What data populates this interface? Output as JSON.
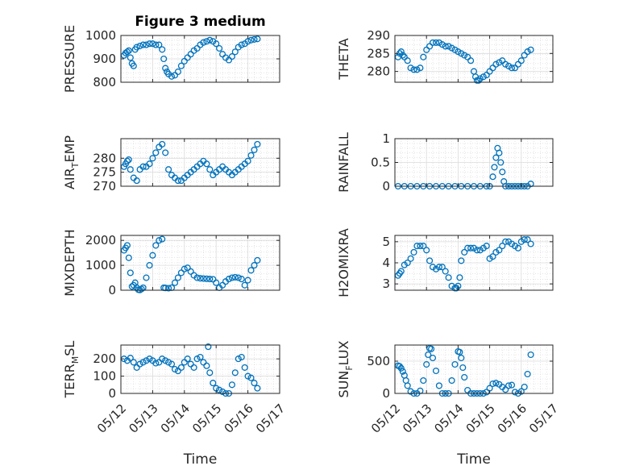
{
  "figure": {
    "title": "Figure 3 medium"
  },
  "colors": {
    "marker": "#0072BD",
    "grid": "#d4d4d4",
    "axis": "#262626"
  },
  "x_ticks": [
    "05/12",
    "05/13",
    "05/14",
    "05/15",
    "05/16",
    "05/17"
  ],
  "chart_data": [
    {
      "type": "scatter",
      "title": "Figure 3 medium",
      "ylabel": "PRESSURE",
      "xlabel": "",
      "ylim": [
        800,
        1000
      ],
      "yticks": [
        800,
        900,
        1000
      ],
      "xlim": [
        0,
        5
      ],
      "grid": true,
      "x": [
        0.1,
        0.15,
        0.2,
        0.25,
        0.3,
        0.35,
        0.4,
        0.45,
        0.5,
        0.6,
        0.7,
        0.8,
        0.9,
        1.0,
        1.1,
        1.2,
        1.3,
        1.35,
        1.4,
        1.45,
        1.5,
        1.6,
        1.7,
        1.8,
        1.9,
        2.0,
        2.1,
        2.2,
        2.3,
        2.4,
        2.5,
        2.6,
        2.7,
        2.8,
        2.9,
        3.0,
        3.1,
        3.2,
        3.3,
        3.4,
        3.5,
        3.6,
        3.7,
        3.8,
        3.9,
        4.0,
        4.1,
        4.2,
        4.3
      ],
      "y": [
        915,
        925,
        930,
        935,
        905,
        880,
        870,
        940,
        950,
        955,
        960,
        960,
        965,
        965,
        960,
        960,
        940,
        900,
        860,
        845,
        835,
        825,
        830,
        845,
        870,
        890,
        905,
        920,
        935,
        945,
        960,
        970,
        975,
        980,
        975,
        965,
        945,
        920,
        905,
        895,
        910,
        930,
        950,
        960,
        965,
        975,
        980,
        983,
        985
      ]
    },
    {
      "type": "scatter",
      "title": "",
      "ylabel": "THETA",
      "xlabel": "",
      "ylim": [
        277,
        290
      ],
      "yticks": [
        280,
        285,
        290
      ],
      "xlim": [
        0,
        5
      ],
      "grid": true,
      "x": [
        0.1,
        0.15,
        0.2,
        0.25,
        0.3,
        0.4,
        0.5,
        0.6,
        0.7,
        0.8,
        0.9,
        1.0,
        1.1,
        1.2,
        1.3,
        1.4,
        1.5,
        1.6,
        1.7,
        1.8,
        1.9,
        2.0,
        2.1,
        2.2,
        2.3,
        2.4,
        2.5,
        2.55,
        2.6,
        2.65,
        2.7,
        2.8,
        2.9,
        3.0,
        3.1,
        3.2,
        3.3,
        3.4,
        3.5,
        3.6,
        3.7,
        3.8,
        3.9,
        4.0,
        4.1,
        4.2,
        4.3
      ],
      "y": [
        284,
        285,
        285.5,
        284.5,
        284,
        283,
        281,
        280.5,
        280.5,
        281,
        284,
        286,
        287,
        288,
        288,
        288,
        287.5,
        287,
        287,
        286.5,
        286,
        285.5,
        285,
        284.5,
        284,
        283,
        280,
        278.5,
        277.5,
        277.5,
        278,
        278.5,
        279,
        280,
        281,
        282,
        282.5,
        283,
        282,
        281.5,
        281,
        281,
        282,
        283,
        284.5,
        285.5,
        286
      ]
    },
    {
      "type": "scatter",
      "title": "",
      "ylabel": "AIR_TEMP",
      "xlabel": "",
      "ylim": [
        270,
        287
      ],
      "yticks": [
        270,
        275,
        280
      ],
      "xlim": [
        0,
        5
      ],
      "grid": true,
      "x": [
        0.1,
        0.15,
        0.2,
        0.25,
        0.3,
        0.4,
        0.5,
        0.6,
        0.7,
        0.8,
        0.9,
        1.0,
        1.1,
        1.2,
        1.3,
        1.4,
        1.5,
        1.6,
        1.7,
        1.8,
        1.9,
        2.0,
        2.1,
        2.2,
        2.3,
        2.4,
        2.5,
        2.6,
        2.7,
        2.8,
        2.9,
        3.0,
        3.1,
        3.2,
        3.3,
        3.4,
        3.5,
        3.6,
        3.7,
        3.8,
        3.9,
        4.0,
        4.1,
        4.2,
        4.3
      ],
      "y": [
        277,
        278,
        279,
        279.5,
        276,
        273,
        272,
        276,
        277,
        277,
        278,
        280,
        282,
        284,
        285,
        282,
        276,
        274,
        273,
        272,
        272,
        273,
        274,
        275,
        276,
        277,
        278,
        279,
        278,
        276,
        274,
        275,
        276,
        277,
        276,
        275,
        274,
        275,
        276,
        277,
        278,
        279,
        281,
        283,
        285
      ]
    },
    {
      "type": "scatter",
      "title": "",
      "ylabel": "RAINFALL",
      "xlabel": "",
      "ylim": [
        0,
        1
      ],
      "yticks": [
        0,
        0.5,
        1
      ],
      "xlim": [
        0,
        5
      ],
      "grid": true,
      "x": [
        0.1,
        0.3,
        0.5,
        0.7,
        0.9,
        1.1,
        1.3,
        1.5,
        1.7,
        1.9,
        2.1,
        2.3,
        2.5,
        2.7,
        2.9,
        3.0,
        3.1,
        3.15,
        3.2,
        3.25,
        3.3,
        3.35,
        3.4,
        3.45,
        3.5,
        3.6,
        3.7,
        3.8,
        3.9,
        4.0,
        4.1,
        4.2,
        4.3
      ],
      "y": [
        0,
        0,
        0,
        0,
        0,
        0,
        0,
        0,
        0,
        0,
        0,
        0,
        0,
        0,
        0,
        0,
        0.2,
        0.4,
        0.6,
        0.8,
        0.7,
        0.5,
        0.3,
        0.1,
        0,
        0,
        0,
        0,
        0,
        0,
        0,
        0,
        0.05
      ]
    },
    {
      "type": "scatter",
      "title": "",
      "ylabel": "MIXDEPTH",
      "xlabel": "",
      "ylim": [
        0,
        2200
      ],
      "yticks": [
        0,
        1000,
        2000
      ],
      "xlim": [
        0,
        5
      ],
      "grid": true,
      "x": [
        0.1,
        0.15,
        0.2,
        0.25,
        0.3,
        0.35,
        0.4,
        0.45,
        0.5,
        0.55,
        0.6,
        0.65,
        0.7,
        0.8,
        0.9,
        1.0,
        1.1,
        1.2,
        1.3,
        1.35,
        1.4,
        1.5,
        1.6,
        1.7,
        1.8,
        1.9,
        2.0,
        2.1,
        2.2,
        2.3,
        2.4,
        2.5,
        2.6,
        2.7,
        2.8,
        2.9,
        3.0,
        3.1,
        3.2,
        3.3,
        3.4,
        3.5,
        3.6,
        3.7,
        3.8,
        3.9,
        4.0,
        4.1,
        4.2,
        4.3
      ],
      "y": [
        1600,
        1700,
        1800,
        1300,
        700,
        150,
        200,
        300,
        100,
        20,
        10,
        50,
        100,
        500,
        1000,
        1400,
        1800,
        2000,
        2050,
        100,
        90,
        80,
        100,
        300,
        500,
        700,
        850,
        900,
        750,
        600,
        500,
        480,
        470,
        460,
        450,
        440,
        300,
        100,
        200,
        350,
        450,
        500,
        520,
        500,
        450,
        200,
        400,
        800,
        1000,
        1200
      ]
    },
    {
      "type": "scatter",
      "title": "",
      "ylabel": "H2OMIXRA",
      "xlabel": "",
      "ylim": [
        2.7,
        5.3
      ],
      "yticks": [
        3,
        4,
        5
      ],
      "xlim": [
        0,
        5
      ],
      "grid": true,
      "x": [
        0.1,
        0.15,
        0.2,
        0.3,
        0.4,
        0.5,
        0.6,
        0.7,
        0.8,
        0.9,
        1.0,
        1.1,
        1.2,
        1.3,
        1.4,
        1.5,
        1.6,
        1.7,
        1.8,
        1.9,
        1.95,
        2.0,
        2.05,
        2.1,
        2.2,
        2.3,
        2.4,
        2.5,
        2.6,
        2.7,
        2.8,
        2.9,
        3.0,
        3.1,
        3.2,
        3.3,
        3.4,
        3.5,
        3.6,
        3.7,
        3.8,
        3.9,
        4.0,
        4.1,
        4.2,
        4.3
      ],
      "y": [
        3.4,
        3.5,
        3.6,
        3.9,
        4.0,
        4.2,
        4.5,
        4.8,
        4.8,
        4.8,
        4.6,
        4.1,
        3.8,
        3.7,
        3.8,
        3.8,
        3.6,
        3.3,
        2.9,
        2.8,
        2.8,
        2.9,
        3.3,
        4.1,
        4.5,
        4.7,
        4.7,
        4.7,
        4.6,
        4.6,
        4.7,
        4.8,
        4.2,
        4.3,
        4.5,
        4.6,
        4.8,
        5.0,
        5.0,
        4.9,
        4.8,
        4.7,
        5.0,
        5.1,
        5.1,
        4.9
      ]
    },
    {
      "type": "scatter",
      "title": "",
      "ylabel": "TERR_MSL",
      "xlabel": "Time",
      "ylim": [
        0,
        280
      ],
      "yticks": [
        0,
        100,
        200
      ],
      "xlim": [
        0,
        5
      ],
      "grid": true,
      "x": [
        0.1,
        0.2,
        0.3,
        0.4,
        0.5,
        0.6,
        0.7,
        0.8,
        0.9,
        1.0,
        1.1,
        1.2,
        1.3,
        1.4,
        1.5,
        1.6,
        1.7,
        1.8,
        1.9,
        2.0,
        2.1,
        2.2,
        2.3,
        2.4,
        2.5,
        2.6,
        2.7,
        2.75,
        2.8,
        2.9,
        3.0,
        3.1,
        3.2,
        3.3,
        3.4,
        3.5,
        3.6,
        3.7,
        3.8,
        3.9,
        4.0,
        4.1,
        4.2,
        4.3
      ],
      "y": [
        200,
        190,
        205,
        180,
        150,
        170,
        180,
        190,
        200,
        190,
        175,
        180,
        200,
        190,
        180,
        170,
        140,
        130,
        150,
        180,
        200,
        170,
        150,
        200,
        210,
        180,
        160,
        270,
        120,
        60,
        30,
        20,
        10,
        0,
        0,
        50,
        120,
        200,
        210,
        150,
        100,
        90,
        60,
        30
      ]
    },
    {
      "type": "scatter",
      "title": "",
      "ylabel": "SUN_FLUX",
      "xlabel": "Time",
      "ylim": [
        0,
        750
      ],
      "yticks": [
        0,
        500
      ],
      "xlim": [
        0,
        5
      ],
      "grid": true,
      "x": [
        0.1,
        0.15,
        0.2,
        0.25,
        0.3,
        0.35,
        0.4,
        0.5,
        0.6,
        0.7,
        0.8,
        0.9,
        1.0,
        1.05,
        1.1,
        1.15,
        1.2,
        1.3,
        1.4,
        1.5,
        1.6,
        1.7,
        1.8,
        1.9,
        2.0,
        2.05,
        2.1,
        2.15,
        2.2,
        2.3,
        2.4,
        2.5,
        2.6,
        2.7,
        2.8,
        2.9,
        3.0,
        3.1,
        3.2,
        3.3,
        3.4,
        3.5,
        3.6,
        3.7,
        3.8,
        3.9,
        4.0,
        4.1,
        4.2,
        4.3
      ],
      "y": [
        430,
        420,
        390,
        340,
        280,
        200,
        120,
        30,
        0,
        0,
        40,
        200,
        450,
        600,
        700,
        690,
        550,
        350,
        120,
        0,
        0,
        0,
        200,
        450,
        650,
        640,
        550,
        400,
        250,
        50,
        0,
        0,
        0,
        0,
        0,
        20,
        80,
        150,
        160,
        140,
        100,
        60,
        120,
        130,
        20,
        0,
        30,
        100,
        300,
        600
      ]
    }
  ]
}
